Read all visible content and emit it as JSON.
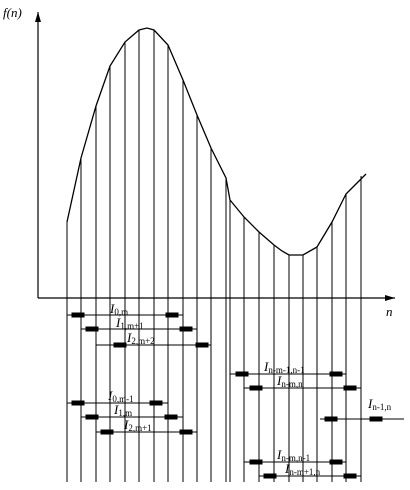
{
  "axes": {
    "y_label": "f(n)",
    "x_label": "n"
  },
  "intervals_group1": [
    {
      "letter": "I",
      "sub": "0,m"
    },
    {
      "letter": "I",
      "sub": "1,m+1"
    },
    {
      "letter": "I",
      "sub": "2,m+2"
    }
  ],
  "intervals_group2": [
    {
      "letter": "I",
      "sub": "n-m-1,n-1"
    },
    {
      "letter": "I",
      "sub": "n-m,n"
    }
  ],
  "interval_right": {
    "letter": "I",
    "sub": "n-1,n"
  },
  "intervals_group3": [
    {
      "letter": "I",
      "sub": "0,m-1"
    },
    {
      "letter": "I",
      "sub": "1,m"
    },
    {
      "letter": "I",
      "sub": "2,m+1"
    }
  ],
  "intervals_group4": [
    {
      "letter": "I",
      "sub": "n-m,n-1"
    },
    {
      "letter": "I",
      "sub": "n-m+1,n"
    }
  ]
}
